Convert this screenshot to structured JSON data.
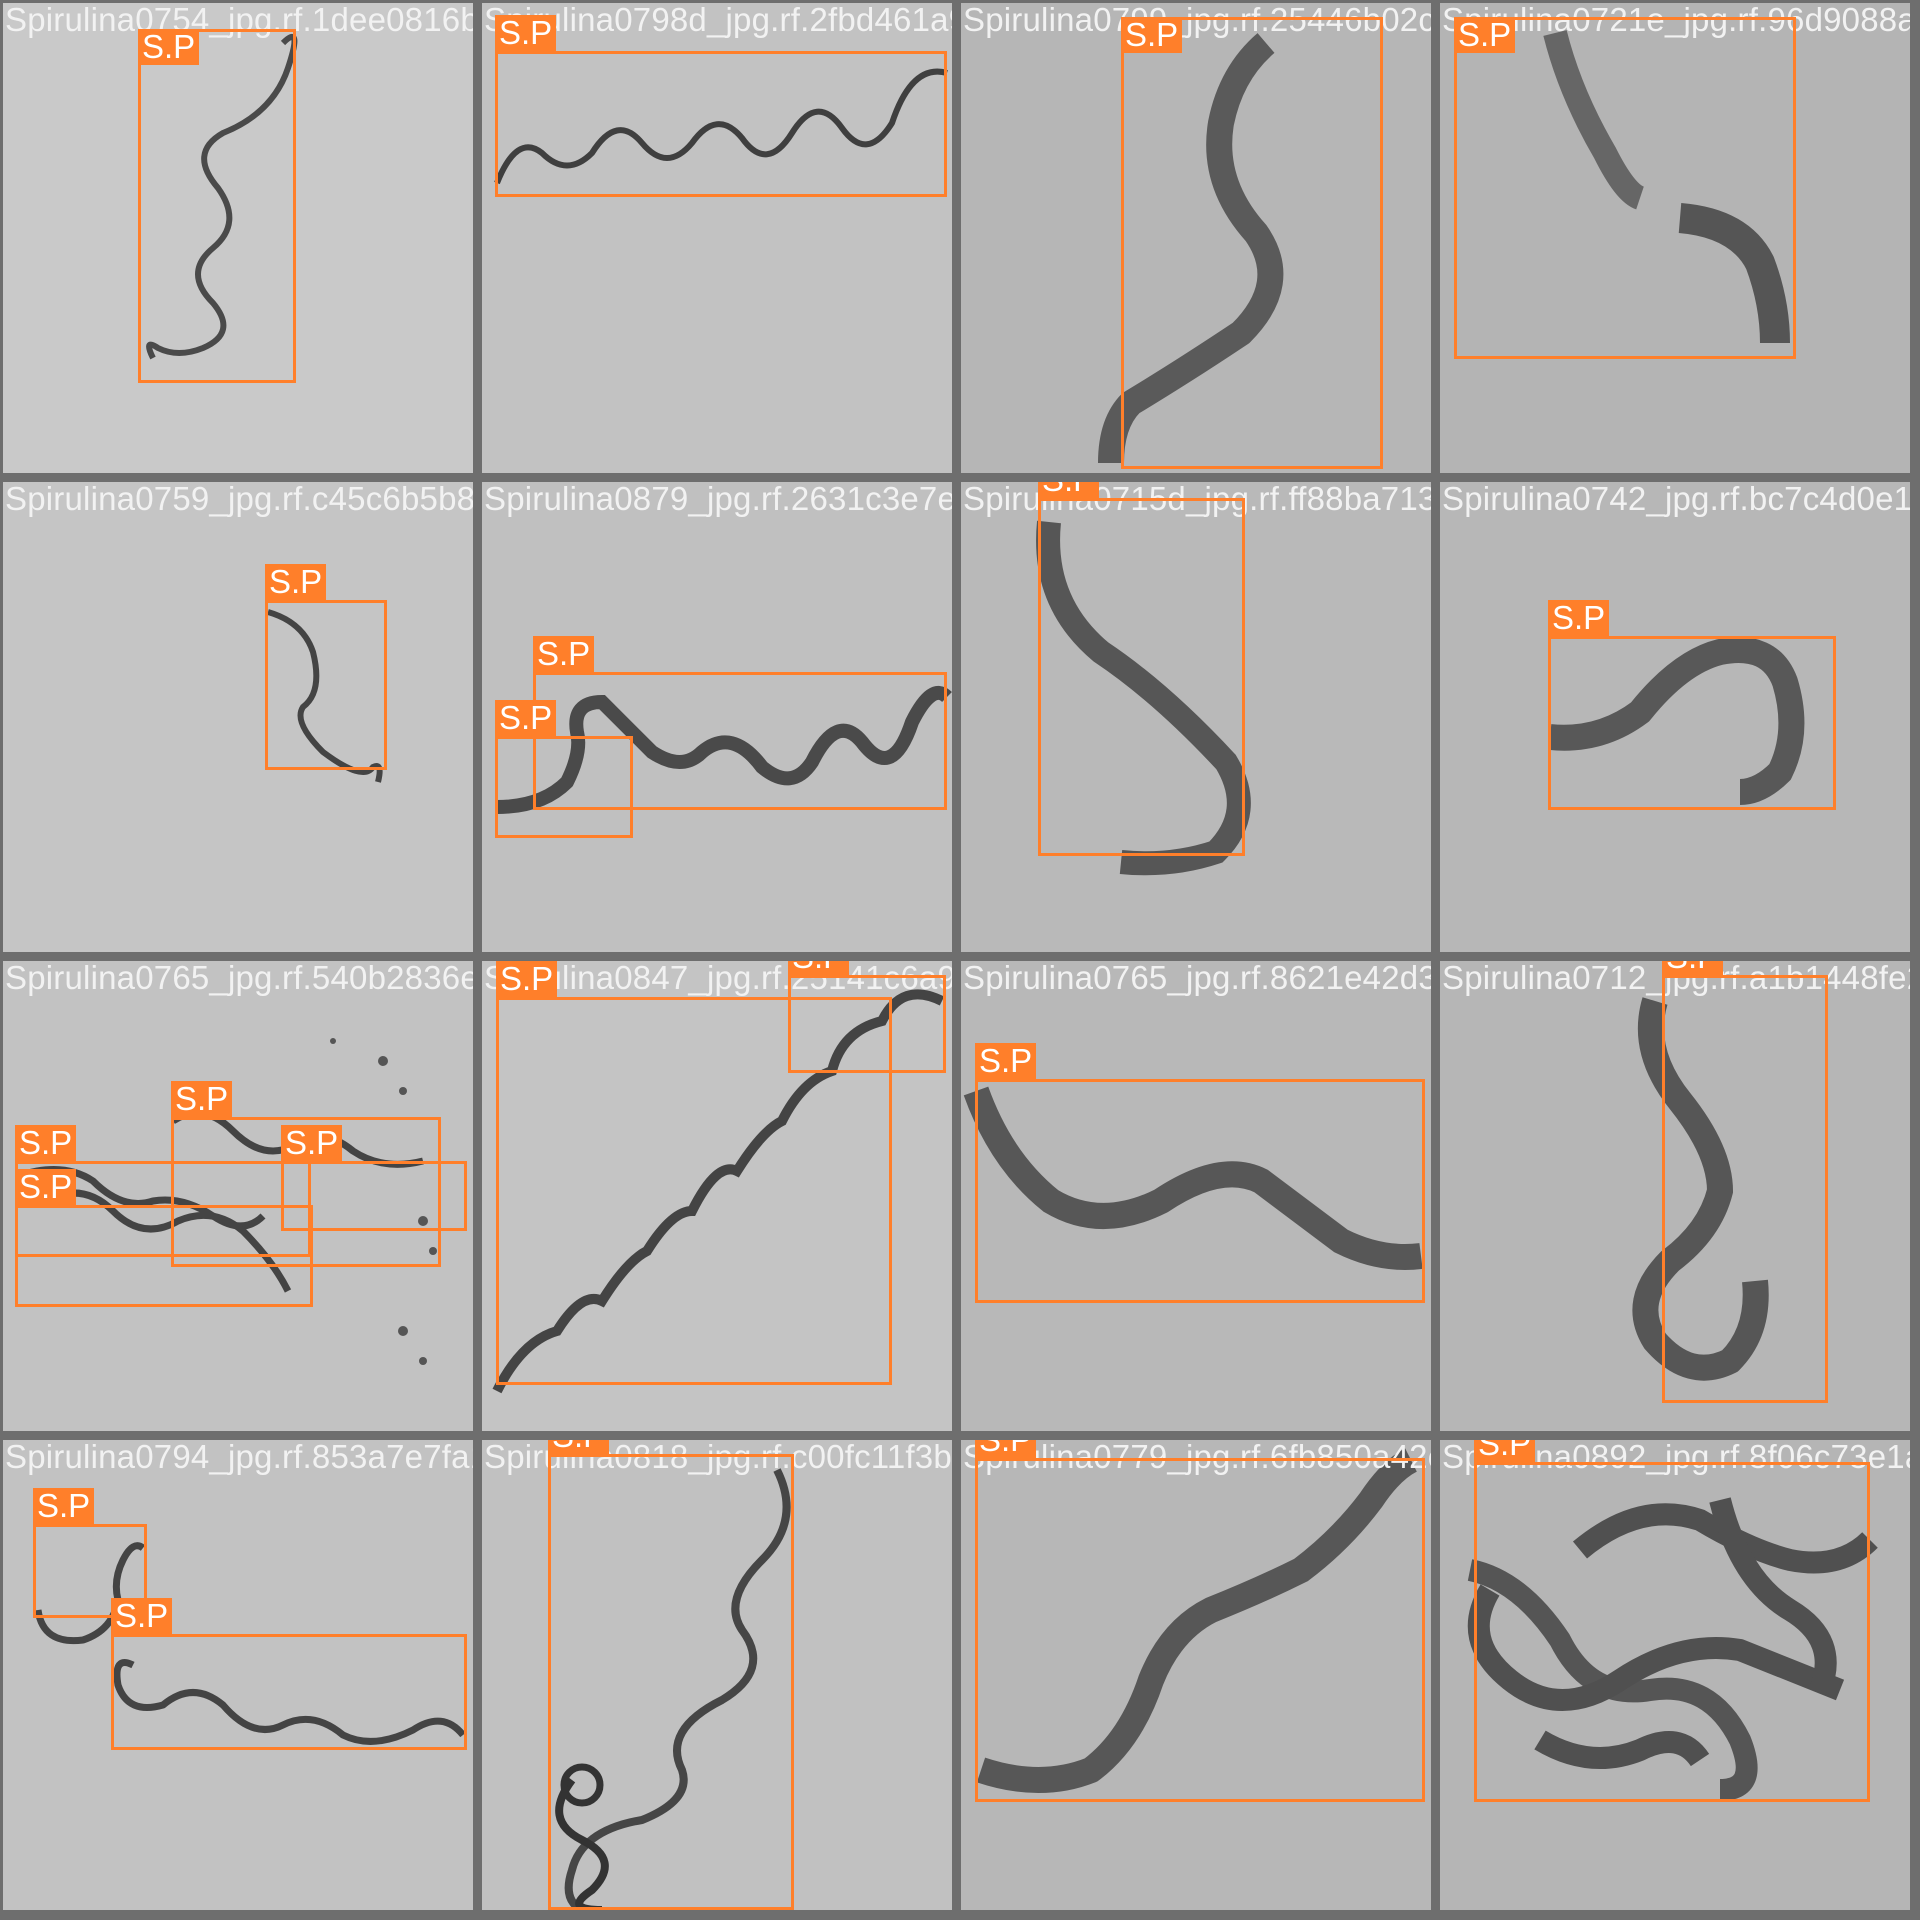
{
  "label_name": "S.P",
  "box_color": "#ff7f2a",
  "tiles": [
    {
      "file": "Spirulina0754_jpg.rf.1dee0816b3e1e4a6"
    },
    {
      "file": "Spirulina0798d_jpg.rf.2fbd461a9e3689ac"
    },
    {
      "file": "Spirulina0799_jpg.rf.25446b02ca31907a"
    },
    {
      "file": "Spirulina0721e_jpg.rf.96d9088ab1c5e2f0"
    },
    {
      "file": "Spirulina0759_jpg.rf.c45c6b5b8214ed3c"
    },
    {
      "file": "Spirulina0879_jpg.rf.2631c3e7e2a8cb3f"
    },
    {
      "file": "Spirulina0715d_jpg.rf.ff88ba713b483d21"
    },
    {
      "file": "Spirulina0742_jpg.rf.bc7c4d0e11af62a8"
    },
    {
      "file": "Spirulina0765_jpg.rf.540b2836e12fa071"
    },
    {
      "file": "Spirulina0847_jpg.rf.25141c6a9df73e02"
    },
    {
      "file": "Spirulina0765_jpg.rf.8621e42d329ac07a"
    },
    {
      "file": "Spirulina0712_jpg.rf.a1b1448fe2c693d5"
    },
    {
      "file": "Spirulina0794_jpg.rf.853a7e7fa1c93d86"
    },
    {
      "file": "Spirulina0818_jpg.rf.c00fc11f3b2a9e47"
    },
    {
      "file": "Spirulina0779_jpg.rf.6fb850a42cd17b39"
    },
    {
      "file": "Spirulina0892_jpg.rf.8f06c73e1a52d904"
    }
  ]
}
